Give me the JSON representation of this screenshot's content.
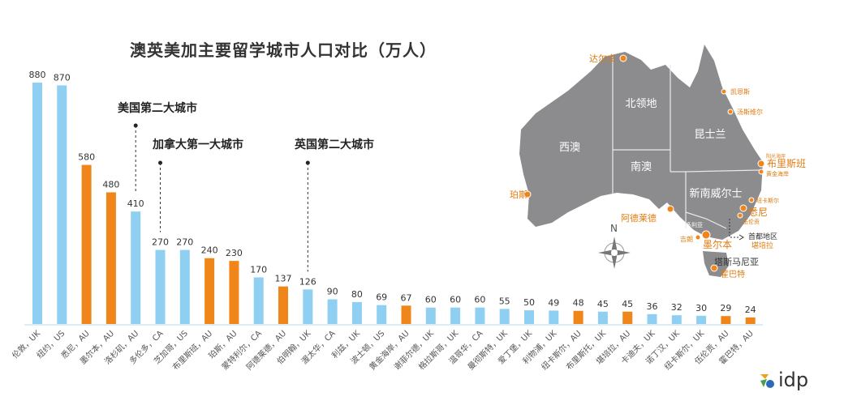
{
  "chart_data": {
    "type": "bar",
    "title": "澳英美加主要留学城市人口对比（万人）",
    "categories": [
      "伦敦，UK",
      "纽约，US",
      "悉尼，AU",
      "墨尔本，AU",
      "洛杉矶，AU",
      "多伦多，CA",
      "芝加哥，US",
      "布里斯班，AU",
      "珀斯，AU",
      "蒙特利尔，CA",
      "阿德莱德，AU",
      "伯明翰，UK",
      "渥太华，CA",
      "利兹，UK",
      "波士顿，US",
      "黄金海岸，AU",
      "谢菲尔德，UK",
      "格拉斯哥，UK",
      "温哥华，CA",
      "曼彻斯特，UK",
      "爱丁堡，UK",
      "利物浦，UK",
      "纽卡斯尔，AU",
      "布里斯托，UK",
      "堪培拉，AU",
      "卡迪夫，UK",
      "诺丁汉，UK",
      "纽卡斯尔，UK",
      "伍伦贡，AU",
      "霍巴特，AU"
    ],
    "values": [
      880,
      870,
      580,
      480,
      410,
      270,
      270,
      240,
      230,
      170,
      137,
      126,
      90,
      80,
      69,
      67,
      60,
      60,
      60,
      55,
      50,
      49,
      48,
      45,
      45,
      36,
      32,
      30,
      29,
      24
    ],
    "highlight": [
      false,
      false,
      true,
      true,
      false,
      false,
      false,
      true,
      true,
      false,
      true,
      false,
      false,
      false,
      false,
      true,
      false,
      false,
      false,
      false,
      false,
      false,
      true,
      false,
      true,
      false,
      false,
      false,
      true,
      true
    ],
    "colors": {
      "default": "#8fd0f2",
      "highlight": "#f0861a"
    },
    "ylim": [
      0,
      900
    ],
    "grid": false,
    "annotations": [
      {
        "text": "美国第二大城市",
        "category_index": 4
      },
      {
        "text": "加拿大第一大城市",
        "category_index": 5
      },
      {
        "text": "英国第二大城市",
        "category_index": 11
      }
    ]
  },
  "map": {
    "regions": [
      "西澳",
      "北领地",
      "昆士兰",
      "南澳",
      "新南威尔士",
      "维多利亚",
      "塔斯马尼亚"
    ],
    "cities": [
      "达尔文",
      "珀斯",
      "阿德莱德",
      "凯恩斯",
      "汤斯维尔",
      "阳光海岸",
      "布里斯班",
      "黄金海岸",
      "纽卡斯尔",
      "悉尼",
      "伍伦贡",
      "吉朗",
      "墨尔本",
      "首都地区",
      "堪培拉",
      "霍巴特"
    ],
    "compass_label": "N"
  },
  "logo": "idp"
}
